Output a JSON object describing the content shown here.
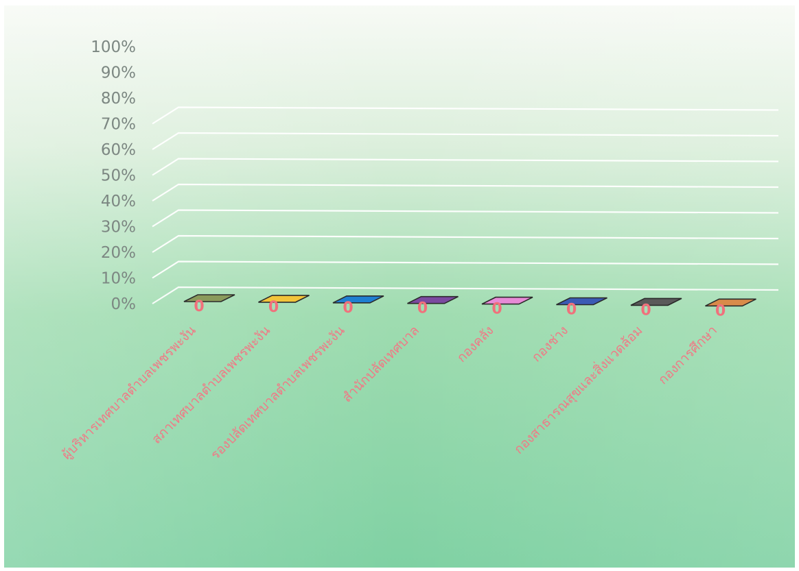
{
  "chart_data": {
    "type": "bar",
    "categories": [
      "ผู้บริหารเทศบาลตำบลเพชรพะงัน",
      "สภาเทศบาลตำบลเพชรพะงัน",
      "รองปลัดเทศบาลตำบลเพชรพะงัน",
      "สำนักปลัดเทศบาล",
      "กองคลัง",
      "กองช่าง",
      "กองสาธารณสุขและสิ่งแวดล้อม",
      "กองการศึกษา"
    ],
    "values": [
      0,
      0,
      0,
      0,
      0,
      0,
      0,
      0
    ],
    "data_labels": [
      "0",
      "0",
      "0",
      "0",
      "0",
      "0",
      "0",
      "0"
    ],
    "y_ticks": [
      "0%",
      "10%",
      "20%",
      "30%",
      "40%",
      "50%",
      "60%",
      "70%",
      "80%",
      "90%",
      "100%"
    ],
    "ylim": [
      0,
      100
    ],
    "bar_colors": [
      "#8a9a5b",
      "#f2c43a",
      "#1f7fd1",
      "#7b4aa0",
      "#e78bd6",
      "#3b5bb5",
      "#5a5a5a",
      "#d98b4a"
    ],
    "grid": true,
    "legend": "none",
    "style": "3d",
    "background": "green-gradient"
  }
}
